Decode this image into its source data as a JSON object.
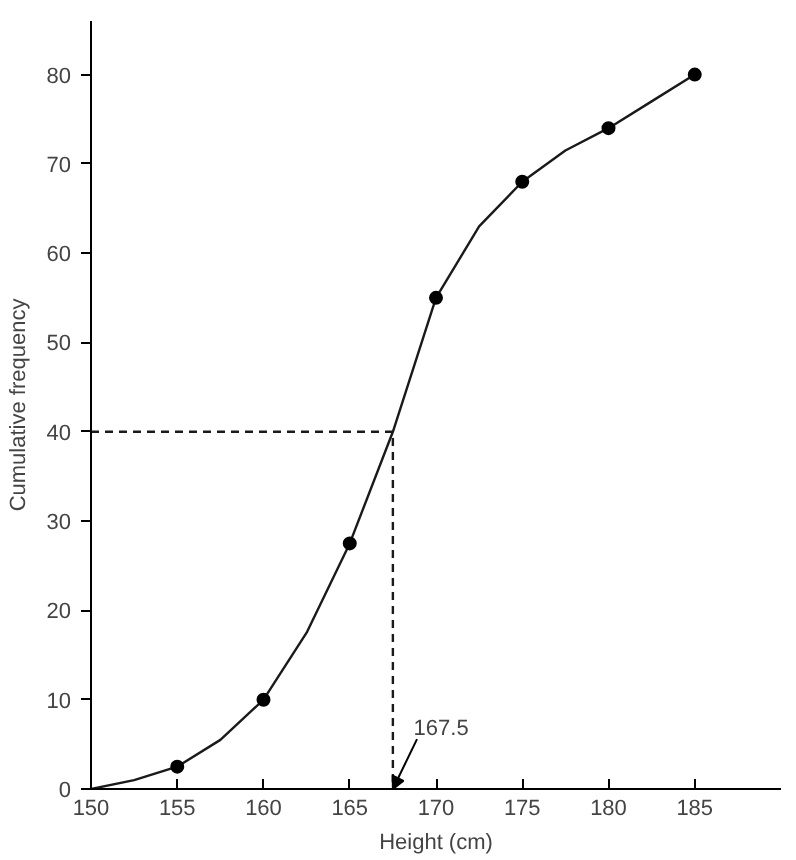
{
  "chart_data": {
    "type": "line",
    "xlabel": "Height (cm)",
    "ylabel": "Cumulative frequency",
    "xlim": [
      150,
      190
    ],
    "ylim": [
      0,
      86
    ],
    "xticks": [
      150,
      155,
      160,
      165,
      170,
      175,
      180,
      185
    ],
    "yticks": [
      0,
      10,
      20,
      30,
      40,
      50,
      60,
      70,
      80
    ],
    "grid": false,
    "series": [
      {
        "color": "#1a1a1a",
        "marker": "none",
        "line_style": "solid",
        "x": [
          150,
          152.5,
          155,
          157.5,
          160,
          162.5,
          165,
          167.5,
          170,
          172.5,
          175,
          177.5,
          180,
          182.5,
          185
        ],
        "values": [
          0,
          1,
          2.5,
          5.5,
          10,
          17.5,
          27.5,
          40,
          55,
          63,
          68,
          71.5,
          74,
          77,
          80
        ]
      },
      {
        "type": "scatter",
        "color": "#000000",
        "marker": "circle",
        "x": [
          155,
          160,
          165,
          170,
          175,
          180,
          185
        ],
        "values": [
          2.5,
          10,
          27.5,
          55,
          68,
          74,
          80
        ]
      },
      {
        "type": "line",
        "color": "#1a1a1a",
        "marker": "none",
        "line_style": "dashed",
        "x": [
          150,
          167.5,
          167.5
        ],
        "values": [
          40,
          40,
          0
        ]
      }
    ],
    "annotations": [
      {
        "text": "167.5",
        "x": 167.5,
        "y": 0
      }
    ]
  }
}
